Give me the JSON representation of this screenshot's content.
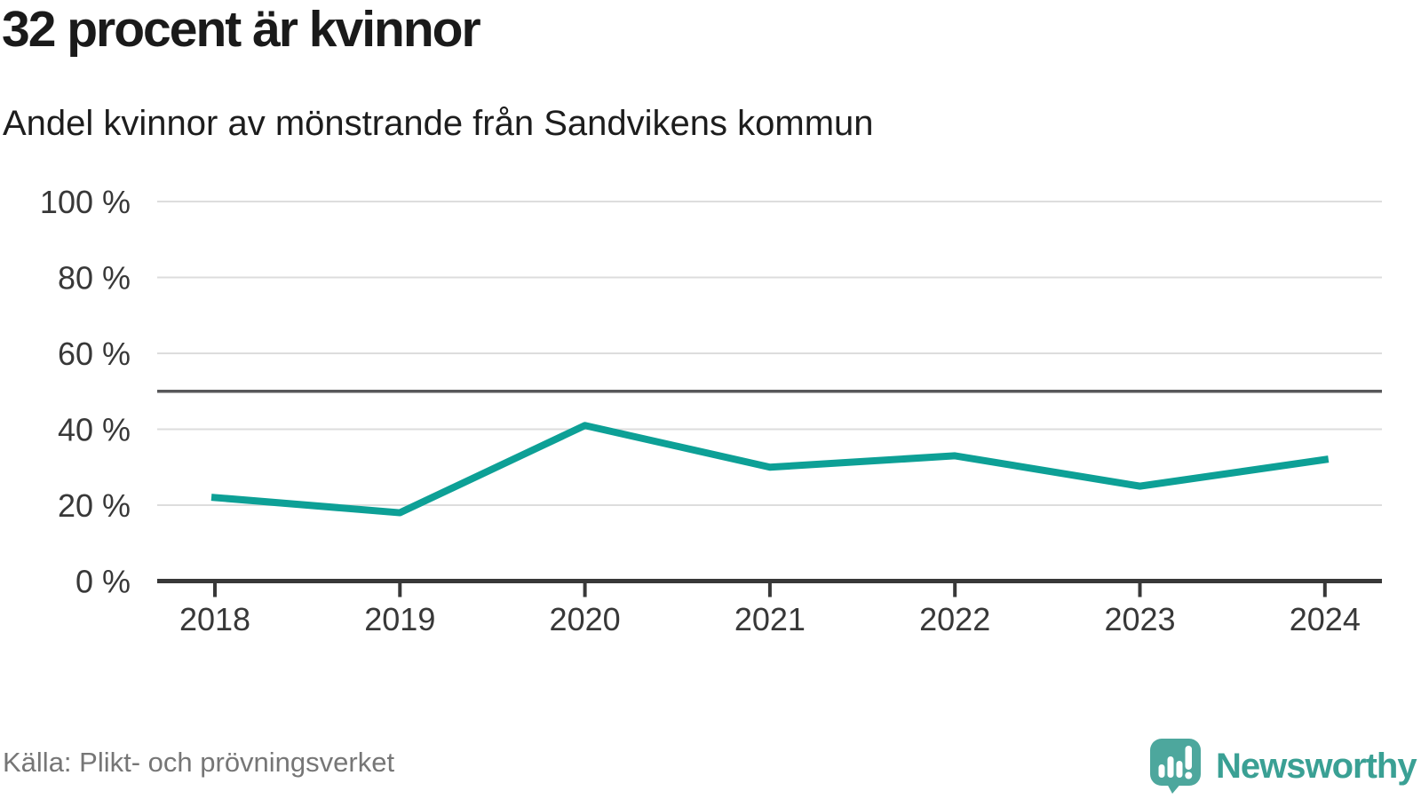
{
  "header": {
    "title": "32 procent är kvinnor",
    "subtitle": "Andel kvinnor av mönstrande från Sandvikens kommun"
  },
  "chart_data": {
    "type": "line",
    "title": "32 procent är kvinnor",
    "subtitle": "Andel kvinnor av mönstrande från Sandvikens kommun",
    "categories": [
      "2018",
      "2019",
      "2020",
      "2021",
      "2022",
      "2023",
      "2024"
    ],
    "series": [
      {
        "name": "Andel kvinnor av mönstrande",
        "values": [
          22,
          18,
          41,
          30,
          33,
          25,
          32
        ],
        "unit": "%"
      }
    ],
    "ylim": [
      0,
      100
    ],
    "yticks": {
      "values": [
        0,
        20,
        40,
        60,
        80,
        100
      ],
      "labels": [
        "0 %",
        "20 %",
        "40 %",
        "60 %",
        "80 %",
        "100 %"
      ]
    },
    "reference_line": {
      "value": 50
    },
    "grid": true,
    "legend": "none",
    "xlabel": "",
    "ylabel": ""
  },
  "footer": {
    "source": "Källa: Plikt- och prövningsverket",
    "brand": {
      "name": "Newsworthy"
    }
  },
  "colors": {
    "series": "#0da096",
    "axis": "#383838",
    "tick_text": "#383838",
    "grid": "#dddddd",
    "reference": "#58585a",
    "title_text": "#1a1a1a",
    "muted_text": "#767676",
    "brand_text": "#3aa094",
    "brand_bubble": "#4da79d",
    "background": "#ffffff"
  }
}
